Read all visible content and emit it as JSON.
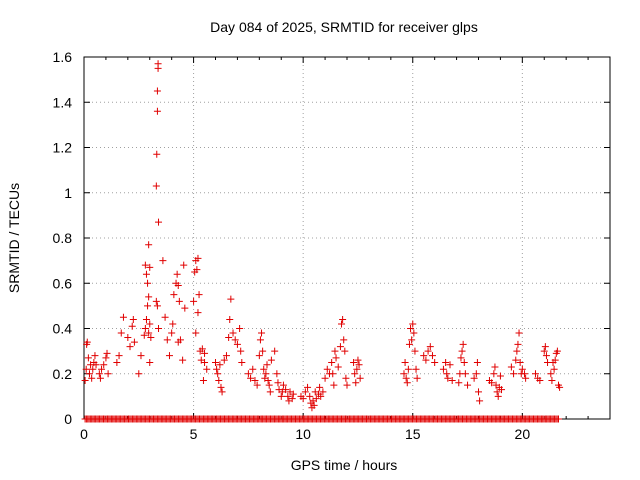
{
  "chart_data": {
    "type": "scatter",
    "title": "Day 084 of 2025, SRMTID for receiver glps",
    "xlabel": "GPS time / hours",
    "ylabel": "SRMTID / TECUs",
    "xlim": [
      0,
      24
    ],
    "ylim": [
      0,
      1.6
    ],
    "grid": true,
    "x_ticks": [
      0,
      5,
      10,
      15,
      20
    ],
    "x_tick_labels": [
      "0",
      "5",
      "10",
      "15",
      "20"
    ],
    "y_ticks": [
      0,
      0.2,
      0.4,
      0.6,
      0.8,
      1.0,
      1.2,
      1.4,
      1.6
    ],
    "y_tick_labels": [
      "0",
      "0.2",
      "0.4",
      "0.6",
      "0.8",
      "1",
      "1.2",
      "1.4",
      "1.6"
    ],
    "marker": "plus",
    "color": "#e00000",
    "zero_baseline_x_range": [
      0.05,
      21.7
    ],
    "series": [
      {
        "name": "SRMTID",
        "points": [
          [
            0.05,
            0.17
          ],
          [
            0.1,
            0.22
          ],
          [
            0.12,
            0.33
          ],
          [
            0.15,
            0.34
          ],
          [
            0.2,
            0.27
          ],
          [
            0.25,
            0.2
          ],
          [
            0.3,
            0.24
          ],
          [
            0.35,
            0.18
          ],
          [
            0.4,
            0.22
          ],
          [
            0.45,
            0.25
          ],
          [
            0.5,
            0.28
          ],
          [
            0.55,
            0.24
          ],
          [
            0.7,
            0.2
          ],
          [
            0.75,
            0.18
          ],
          [
            0.8,
            0.22
          ],
          [
            0.9,
            0.24
          ],
          [
            1.0,
            0.27
          ],
          [
            1.05,
            0.29
          ],
          [
            1.1,
            0.2
          ],
          [
            1.5,
            0.25
          ],
          [
            1.6,
            0.28
          ],
          [
            1.7,
            0.38
          ],
          [
            1.8,
            0.45
          ],
          [
            2.0,
            0.36
          ],
          [
            2.1,
            0.32
          ],
          [
            2.2,
            0.41
          ],
          [
            2.25,
            0.44
          ],
          [
            2.3,
            0.34
          ],
          [
            2.5,
            0.2
          ],
          [
            2.6,
            0.28
          ],
          [
            2.75,
            0.37
          ],
          [
            2.8,
            0.4
          ],
          [
            2.85,
            0.44
          ],
          [
            2.9,
            0.5
          ],
          [
            2.95,
            0.54
          ],
          [
            2.8,
            0.68
          ],
          [
            2.85,
            0.64
          ],
          [
            2.9,
            0.6
          ],
          [
            2.95,
            0.77
          ],
          [
            3.0,
            0.67
          ],
          [
            2.95,
            0.38
          ],
          [
            3.0,
            0.42
          ],
          [
            3.0,
            0.25
          ],
          [
            3.05,
            0.36
          ],
          [
            3.3,
            0.52
          ],
          [
            3.3,
            1.03
          ],
          [
            3.32,
            1.17
          ],
          [
            3.35,
            1.36
          ],
          [
            3.35,
            1.45
          ],
          [
            3.38,
            1.55
          ],
          [
            3.38,
            1.57
          ],
          [
            3.4,
            0.87
          ],
          [
            3.35,
            0.5
          ],
          [
            3.4,
            0.4
          ],
          [
            3.6,
            0.7
          ],
          [
            3.7,
            0.45
          ],
          [
            3.8,
            0.35
          ],
          [
            3.9,
            0.28
          ],
          [
            4.0,
            0.38
          ],
          [
            4.05,
            0.42
          ],
          [
            4.1,
            0.55
          ],
          [
            4.2,
            0.6
          ],
          [
            4.25,
            0.64
          ],
          [
            4.3,
            0.59
          ],
          [
            4.35,
            0.52
          ],
          [
            4.4,
            0.35
          ],
          [
            4.5,
            0.26
          ],
          [
            4.55,
            0.68
          ],
          [
            4.6,
            0.49
          ],
          [
            4.3,
            0.34
          ],
          [
            5.0,
            0.52
          ],
          [
            5.05,
            0.65
          ],
          [
            5.1,
            0.7
          ],
          [
            5.15,
            0.66
          ],
          [
            5.2,
            0.71
          ],
          [
            5.25,
            0.55
          ],
          [
            5.2,
            0.47
          ],
          [
            5.1,
            0.38
          ],
          [
            5.3,
            0.3
          ],
          [
            5.35,
            0.26
          ],
          [
            5.4,
            0.31
          ],
          [
            5.5,
            0.25
          ],
          [
            5.6,
            0.22
          ],
          [
            5.45,
            0.17
          ],
          [
            5.5,
            0.29
          ],
          [
            6.0,
            0.25
          ],
          [
            6.05,
            0.22
          ],
          [
            6.1,
            0.2
          ],
          [
            6.15,
            0.17
          ],
          [
            6.2,
            0.24
          ],
          [
            6.25,
            0.14
          ],
          [
            6.3,
            0.12
          ],
          [
            6.4,
            0.26
          ],
          [
            6.5,
            0.28
          ],
          [
            6.6,
            0.36
          ],
          [
            6.65,
            0.44
          ],
          [
            6.7,
            0.53
          ],
          [
            6.8,
            0.38
          ],
          [
            6.9,
            0.35
          ],
          [
            7.0,
            0.33
          ],
          [
            7.1,
            0.4
          ],
          [
            7.15,
            0.3
          ],
          [
            7.2,
            0.25
          ],
          [
            7.5,
            0.2
          ],
          [
            7.6,
            0.18
          ],
          [
            7.7,
            0.22
          ],
          [
            7.8,
            0.17
          ],
          [
            7.9,
            0.15
          ],
          [
            8.0,
            0.28
          ],
          [
            8.05,
            0.35
          ],
          [
            8.1,
            0.38
          ],
          [
            8.15,
            0.3
          ],
          [
            8.2,
            0.22
          ],
          [
            8.25,
            0.18
          ],
          [
            8.3,
            0.2
          ],
          [
            8.35,
            0.24
          ],
          [
            8.4,
            0.17
          ],
          [
            8.45,
            0.15
          ],
          [
            8.5,
            0.12
          ],
          [
            8.55,
            0.26
          ],
          [
            8.7,
            0.3
          ],
          [
            8.8,
            0.2
          ],
          [
            8.85,
            0.16
          ],
          [
            8.9,
            0.13
          ],
          [
            9.0,
            0.1
          ],
          [
            9.05,
            0.12
          ],
          [
            9.1,
            0.15
          ],
          [
            9.2,
            0.13
          ],
          [
            9.3,
            0.1
          ],
          [
            9.35,
            0.08
          ],
          [
            9.4,
            0.12
          ],
          [
            9.5,
            0.09
          ],
          [
            9.55,
            0.11
          ],
          [
            9.9,
            0.1
          ],
          [
            10.0,
            0.09
          ],
          [
            10.1,
            0.12
          ],
          [
            10.2,
            0.14
          ],
          [
            10.3,
            0.1
          ],
          [
            10.35,
            0.07
          ],
          [
            10.4,
            0.05
          ],
          [
            10.45,
            0.08
          ],
          [
            10.5,
            0.06
          ],
          [
            10.55,
            0.12
          ],
          [
            10.6,
            0.09
          ],
          [
            10.7,
            0.11
          ],
          [
            10.75,
            0.14
          ],
          [
            10.8,
            0.1
          ],
          [
            10.9,
            0.12
          ],
          [
            11.0,
            0.18
          ],
          [
            11.1,
            0.22
          ],
          [
            11.2,
            0.2
          ],
          [
            11.3,
            0.25
          ],
          [
            11.35,
            0.2
          ],
          [
            11.4,
            0.15
          ],
          [
            11.45,
            0.3
          ],
          [
            11.5,
            0.27
          ],
          [
            11.6,
            0.23
          ],
          [
            11.7,
            0.32
          ],
          [
            11.75,
            0.42
          ],
          [
            11.8,
            0.44
          ],
          [
            11.85,
            0.35
          ],
          [
            11.9,
            0.3
          ],
          [
            11.95,
            0.18
          ],
          [
            12.0,
            0.15
          ],
          [
            12.3,
            0.25
          ],
          [
            12.35,
            0.2
          ],
          [
            12.4,
            0.16
          ],
          [
            12.45,
            0.22
          ],
          [
            12.5,
            0.26
          ],
          [
            12.55,
            0.24
          ],
          [
            12.6,
            0.18
          ],
          [
            14.6,
            0.2
          ],
          [
            14.65,
            0.25
          ],
          [
            14.7,
            0.18
          ],
          [
            14.75,
            0.16
          ],
          [
            14.8,
            0.22
          ],
          [
            14.85,
            0.33
          ],
          [
            14.9,
            0.4
          ],
          [
            14.95,
            0.35
          ],
          [
            15.0,
            0.42
          ],
          [
            15.05,
            0.38
          ],
          [
            15.1,
            0.3
          ],
          [
            15.15,
            0.22
          ],
          [
            15.2,
            0.18
          ],
          [
            15.5,
            0.28
          ],
          [
            15.6,
            0.26
          ],
          [
            15.7,
            0.3
          ],
          [
            15.8,
            0.32
          ],
          [
            15.9,
            0.28
          ],
          [
            16.0,
            0.25
          ],
          [
            16.4,
            0.22
          ],
          [
            16.5,
            0.25
          ],
          [
            16.55,
            0.2
          ],
          [
            16.6,
            0.18
          ],
          [
            16.7,
            0.24
          ],
          [
            16.8,
            0.17
          ],
          [
            17.1,
            0.16
          ],
          [
            17.15,
            0.2
          ],
          [
            17.2,
            0.27
          ],
          [
            17.25,
            0.3
          ],
          [
            17.3,
            0.33
          ],
          [
            17.35,
            0.25
          ],
          [
            17.4,
            0.2
          ],
          [
            17.5,
            0.15
          ],
          [
            17.8,
            0.18
          ],
          [
            17.9,
            0.2
          ],
          [
            17.95,
            0.25
          ],
          [
            18.0,
            0.12
          ],
          [
            18.05,
            0.08
          ],
          [
            18.5,
            0.17
          ],
          [
            18.6,
            0.16
          ],
          [
            18.7,
            0.2
          ],
          [
            18.75,
            0.23
          ],
          [
            18.8,
            0.15
          ],
          [
            18.85,
            0.12
          ],
          [
            18.9,
            0.1
          ],
          [
            18.95,
            0.14
          ],
          [
            19.0,
            0.19
          ],
          [
            19.05,
            0.13
          ],
          [
            19.5,
            0.23
          ],
          [
            19.6,
            0.2
          ],
          [
            19.7,
            0.26
          ],
          [
            19.75,
            0.3
          ],
          [
            19.8,
            0.33
          ],
          [
            19.85,
            0.38
          ],
          [
            19.9,
            0.25
          ],
          [
            19.95,
            0.2
          ],
          [
            20.0,
            0.22
          ],
          [
            20.1,
            0.2
          ],
          [
            20.15,
            0.18
          ],
          [
            20.6,
            0.2
          ],
          [
            20.7,
            0.18
          ],
          [
            20.8,
            0.17
          ],
          [
            21.0,
            0.3
          ],
          [
            21.05,
            0.32
          ],
          [
            21.1,
            0.28
          ],
          [
            21.15,
            0.25
          ],
          [
            21.3,
            0.2
          ],
          [
            21.35,
            0.17
          ],
          [
            21.4,
            0.25
          ],
          [
            21.45,
            0.22
          ],
          [
            21.5,
            0.26
          ],
          [
            21.55,
            0.29
          ],
          [
            21.6,
            0.3
          ],
          [
            21.65,
            0.15
          ],
          [
            21.7,
            0.14
          ]
        ]
      }
    ]
  }
}
